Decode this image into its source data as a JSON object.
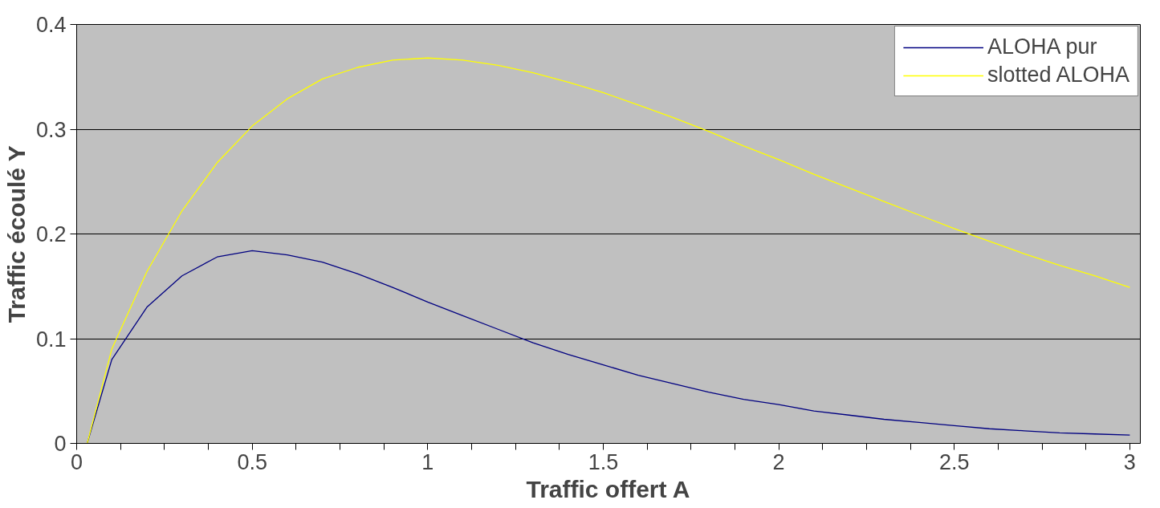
{
  "chart_data": {
    "type": "line",
    "xlabel": "Traffic offert A",
    "ylabel": "Traffic écoulé Y",
    "x": [
      0.03,
      0.1,
      0.2,
      0.3,
      0.4,
      0.5,
      0.6,
      0.7,
      0.8,
      0.9,
      1.0,
      1.1,
      1.2,
      1.3,
      1.4,
      1.5,
      1.6,
      1.7,
      1.8,
      1.9,
      2.0,
      2.1,
      2.2,
      2.3,
      2.4,
      2.5,
      2.6,
      2.7,
      2.8,
      2.9,
      3.0
    ],
    "series": [
      {
        "name": "ALOHA pur",
        "color": "#000080",
        "values": [
          0,
          0.08,
          0.13,
          0.16,
          0.178,
          0.184,
          0.18,
          0.173,
          0.162,
          0.149,
          0.135,
          0.122,
          0.109,
          0.096,
          0.085,
          0.075,
          0.065,
          0.057,
          0.049,
          0.042,
          0.037,
          0.031,
          0.027,
          0.023,
          0.02,
          0.017,
          0.014,
          0.012,
          0.01,
          0.009,
          0.008
        ]
      },
      {
        "name": "slotted ALOHA",
        "color": "#ffff00",
        "values": [
          0,
          0.09,
          0.164,
          0.222,
          0.268,
          0.303,
          0.329,
          0.348,
          0.359,
          0.366,
          0.368,
          0.366,
          0.361,
          0.354,
          0.345,
          0.335,
          0.323,
          0.311,
          0.298,
          0.284,
          0.271,
          0.257,
          0.244,
          0.231,
          0.218,
          0.205,
          0.193,
          0.181,
          0.17,
          0.16,
          0.149
        ]
      }
    ],
    "xlim": [
      0,
      3.03
    ],
    "ylim": [
      0,
      0.4
    ],
    "xticks": [
      0,
      {
        "value": 0.125,
        "label": null
      },
      {
        "value": 0.25,
        "label": null
      },
      {
        "value": 0.375,
        "label": null
      },
      0.5,
      {
        "value": 0.625,
        "label": null
      },
      {
        "value": 0.75,
        "label": null
      },
      {
        "value": 0.875,
        "label": null
      },
      1,
      {
        "value": 1.125,
        "label": null
      },
      {
        "value": 1.25,
        "label": null
      },
      {
        "value": 1.375,
        "label": null
      },
      1.5,
      {
        "value": 1.625,
        "label": null
      },
      {
        "value": 1.75,
        "label": null
      },
      {
        "value": 1.875,
        "label": null
      },
      2,
      {
        "value": 2.125,
        "label": null
      },
      {
        "value": 2.25,
        "label": null
      },
      {
        "value": 2.375,
        "label": null
      },
      2.5,
      {
        "value": 2.625,
        "label": null
      },
      {
        "value": 2.75,
        "label": null
      },
      {
        "value": 2.875,
        "label": null
      },
      3
    ],
    "yticks": [
      0,
      0.1,
      0.2,
      0.3,
      0.4
    ],
    "grid": "y",
    "legend": "top right",
    "marker": "none",
    "line_style": "solid"
  }
}
